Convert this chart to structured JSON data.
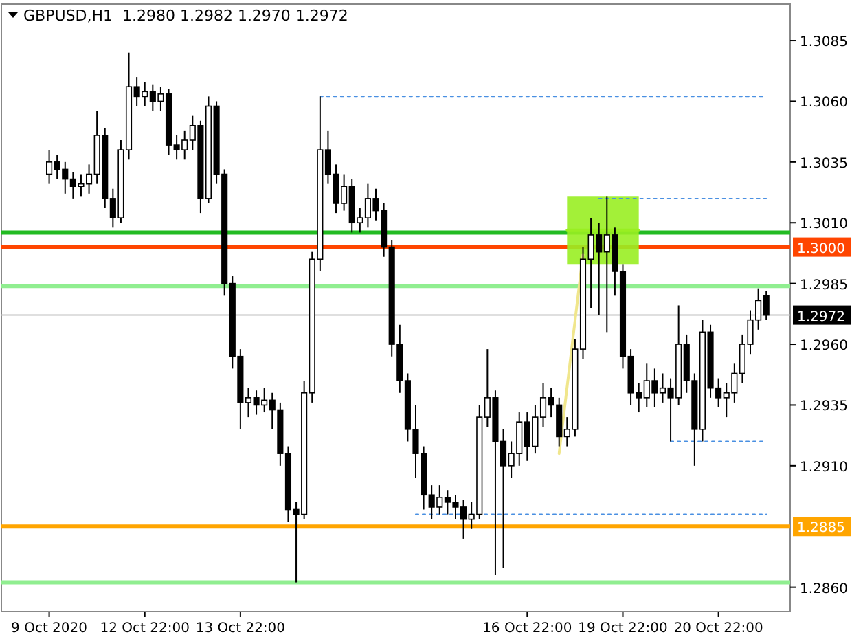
{
  "chart_data": {
    "type": "candlestick",
    "title": "GBPUSD,H1  1.2980 1.2982 1.2970 1.2972",
    "categories": [
      "9 Oct 2020",
      null,
      null,
      null,
      null,
      null,
      null,
      null,
      null,
      null,
      null,
      null,
      "12 Oct 22:00",
      null,
      null,
      null,
      null,
      null,
      null,
      null,
      null,
      null,
      null,
      null,
      "13 Oct 22:00",
      null,
      null,
      null,
      null,
      null,
      null,
      null,
      null,
      null,
      null,
      null,
      null,
      null,
      null,
      null,
      null,
      null,
      null,
      null,
      null,
      null,
      null,
      null,
      null,
      null,
      null,
      null,
      null,
      null,
      null,
      null,
      null,
      null,
      null,
      null,
      "16 Oct 22:00",
      null,
      null,
      null,
      null,
      null,
      null,
      null,
      null,
      null,
      null,
      null,
      "19 Oct 22:00",
      null,
      null,
      null,
      null,
      null,
      null,
      null,
      null,
      null,
      null,
      null,
      "20 Oct 22:00",
      null,
      null,
      null,
      null,
      null,
      null
    ],
    "ohlc": [
      [
        1.303,
        1.304,
        1.3026,
        1.3035
      ],
      [
        1.3035,
        1.3038,
        1.3028,
        1.3032
      ],
      [
        1.3032,
        1.3035,
        1.3022,
        1.3028
      ],
      [
        1.3028,
        1.3031,
        1.302,
        1.3025
      ],
      [
        1.3025,
        1.303,
        1.3021,
        1.3026
      ],
      [
        1.3026,
        1.3034,
        1.3022,
        1.303
      ],
      [
        1.303,
        1.3056,
        1.3026,
        1.3046
      ],
      [
        1.3046,
        1.3049,
        1.3016,
        1.302
      ],
      [
        1.302,
        1.3024,
        1.3008,
        1.3012
      ],
      [
        1.3012,
        1.3044,
        1.301,
        1.304
      ],
      [
        1.304,
        1.308,
        1.3036,
        1.3066
      ],
      [
        1.3066,
        1.307,
        1.3058,
        1.3062
      ],
      [
        1.3062,
        1.3068,
        1.3058,
        1.3064
      ],
      [
        1.3064,
        1.3067,
        1.3056,
        1.306
      ],
      [
        1.306,
        1.3066,
        1.3056,
        1.3063
      ],
      [
        1.3063,
        1.3065,
        1.3038,
        1.3042
      ],
      [
        1.3042,
        1.3046,
        1.3036,
        1.304
      ],
      [
        1.304,
        1.3048,
        1.3036,
        1.3044
      ],
      [
        1.3044,
        1.3054,
        1.304,
        1.305
      ],
      [
        1.305,
        1.3052,
        1.3014,
        1.302
      ],
      [
        1.302,
        1.3062,
        1.3018,
        1.3058
      ],
      [
        1.3058,
        1.306,
        1.3026,
        1.303
      ],
      [
        1.303,
        1.3032,
        1.298,
        1.2985
      ],
      [
        1.2985,
        1.2988,
        1.295,
        1.2955
      ],
      [
        1.2955,
        1.2958,
        1.2925,
        1.2936
      ],
      [
        1.2936,
        1.2942,
        1.293,
        1.2938
      ],
      [
        1.2938,
        1.2941,
        1.2931,
        1.2935
      ],
      [
        1.2935,
        1.2942,
        1.2932,
        1.2937
      ],
      [
        1.2937,
        1.294,
        1.2925,
        1.2933
      ],
      [
        1.2933,
        1.2936,
        1.291,
        1.2915
      ],
      [
        1.2915,
        1.2918,
        1.2887,
        1.2892
      ],
      [
        1.2892,
        1.2895,
        1.2862,
        1.289
      ],
      [
        1.289,
        1.2945,
        1.2888,
        1.294
      ],
      [
        1.294,
        1.2998,
        1.2936,
        1.2995
      ],
      [
        1.2995,
        1.3062,
        1.299,
        1.304
      ],
      [
        1.304,
        1.3048,
        1.3026,
        1.303
      ],
      [
        1.303,
        1.3034,
        1.3014,
        1.3018
      ],
      [
        1.3018,
        1.303,
        1.3015,
        1.3025
      ],
      [
        1.3025,
        1.3028,
        1.3006,
        1.301
      ],
      [
        1.301,
        1.3016,
        1.3006,
        1.3012
      ],
      [
        1.3012,
        1.3026,
        1.3008,
        1.302
      ],
      [
        1.302,
        1.3024,
        1.3011,
        1.3015
      ],
      [
        1.3015,
        1.3018,
        1.2996,
        1.3
      ],
      [
        1.3,
        1.3003,
        1.2955,
        1.296
      ],
      [
        1.296,
        1.2968,
        1.294,
        1.2945
      ],
      [
        1.2945,
        1.2948,
        1.292,
        1.2925
      ],
      [
        1.2925,
        1.2935,
        1.2905,
        1.2915
      ],
      [
        1.2915,
        1.2918,
        1.2892,
        1.2898
      ],
      [
        1.2898,
        1.2902,
        1.2888,
        1.2893
      ],
      [
        1.2893,
        1.2902,
        1.289,
        1.2897
      ],
      [
        1.2897,
        1.29,
        1.289,
        1.2895
      ],
      [
        1.2895,
        1.2898,
        1.2888,
        1.2893
      ],
      [
        1.2893,
        1.2896,
        1.288,
        1.2888
      ],
      [
        1.2888,
        1.2895,
        1.2884,
        1.289
      ],
      [
        1.289,
        1.2935,
        1.2888,
        1.293
      ],
      [
        1.293,
        1.2958,
        1.2926,
        1.2938
      ],
      [
        1.2938,
        1.2941,
        1.2865,
        1.292
      ],
      [
        1.292,
        1.2925,
        1.2868,
        1.291
      ],
      [
        1.291,
        1.292,
        1.2905,
        1.2915
      ],
      [
        1.2915,
        1.2932,
        1.291,
        1.2928
      ],
      [
        1.2928,
        1.2932,
        1.2912,
        1.2918
      ],
      [
        1.2918,
        1.2935,
        1.2915,
        1.293
      ],
      [
        1.293,
        1.2944,
        1.2926,
        1.2938
      ],
      [
        1.2938,
        1.2942,
        1.293,
        1.2935
      ],
      [
        1.2935,
        1.2938,
        1.2918,
        1.2922
      ],
      [
        1.2922,
        1.293,
        1.2918,
        1.2925
      ],
      [
        1.2925,
        1.2962,
        1.2922,
        1.2958
      ],
      [
        1.2958,
        1.3,
        1.2954,
        1.2995
      ],
      [
        1.2995,
        1.3012,
        1.2975,
        1.3005
      ],
      [
        1.3005,
        1.301,
        1.2972,
        1.2998
      ],
      [
        1.2998,
        1.3021,
        1.2965,
        1.3005
      ],
      [
        1.3005,
        1.3008,
        1.298,
        1.299
      ],
      [
        1.299,
        1.2993,
        1.295,
        1.2955
      ],
      [
        1.2955,
        1.2958,
        1.2935,
        1.294
      ],
      [
        1.294,
        1.2944,
        1.2932,
        1.2938
      ],
      [
        1.2938,
        1.2952,
        1.2934,
        1.2945
      ],
      [
        1.2945,
        1.295,
        1.2934,
        1.294
      ],
      [
        1.294,
        1.2948,
        1.2936,
        1.2942
      ],
      [
        1.2942,
        1.2946,
        1.292,
        1.2938
      ],
      [
        1.2938,
        1.2976,
        1.2935,
        1.296
      ],
      [
        1.296,
        1.2964,
        1.294,
        1.2945
      ],
      [
        1.2945,
        1.2948,
        1.291,
        1.2925
      ],
      [
        1.2925,
        1.297,
        1.292,
        1.2965
      ],
      [
        1.2965,
        1.2968,
        1.2938,
        1.2942
      ],
      [
        1.2942,
        1.2946,
        1.2934,
        1.2938
      ],
      [
        1.2938,
        1.2944,
        1.293,
        1.294
      ],
      [
        1.294,
        1.2952,
        1.2936,
        1.2948
      ],
      [
        1.2948,
        1.2964,
        1.2944,
        1.296
      ],
      [
        1.296,
        1.2974,
        1.2956,
        1.297
      ],
      [
        1.297,
        1.2983,
        1.2966,
        1.2978
      ],
      [
        1.298,
        1.2982,
        1.297,
        1.2972
      ]
    ],
    "ylim": [
      1.285,
      1.31
    ],
    "yticks": [
      {
        "value": 1.286,
        "label": "1.2860"
      },
      {
        "value": 1.291,
        "label": "1.2910"
      },
      {
        "value": 1.2935,
        "label": "1.2935"
      },
      {
        "value": 1.296,
        "label": "1.2960"
      },
      {
        "value": 1.2985,
        "label": "1.2985"
      },
      {
        "value": 1.301,
        "label": "1.3010"
      },
      {
        "value": 1.3035,
        "label": "1.3035"
      },
      {
        "value": 1.306,
        "label": "1.3060"
      },
      {
        "value": 1.3085,
        "label": "1.3085"
      }
    ],
    "ref_lines": [
      {
        "axis": "y",
        "value": 1.3006,
        "color": "#22bb22"
      },
      {
        "axis": "y",
        "value": 1.3,
        "color": "#ff4500",
        "label": "1.3000"
      },
      {
        "axis": "y",
        "value": 1.2984,
        "color": "#90ee90"
      },
      {
        "axis": "y",
        "value": 1.2972,
        "color": "#c0c0c0",
        "label": "1.2972"
      },
      {
        "axis": "y",
        "value": 1.2885,
        "color": "#ffa500",
        "label": "1.2885"
      },
      {
        "axis": "y",
        "value": 1.2862,
        "color": "#90ee90"
      }
    ],
    "series": [
      {
        "type": "line",
        "color": "#99ee22",
        "line_style": "solid",
        "values": [
          null,
          null,
          null,
          null,
          null,
          null,
          null,
          null,
          null,
          null,
          null,
          null,
          null,
          null,
          null,
          null,
          null,
          null,
          null,
          null,
          null,
          null,
          null,
          null,
          null,
          null,
          null,
          null,
          null,
          null,
          null,
          null,
          null,
          null,
          null,
          null,
          null,
          null,
          null,
          null,
          null,
          null,
          null,
          null,
          null,
          null,
          null,
          null,
          null,
          null,
          null,
          null,
          null,
          null,
          null,
          null,
          null,
          null,
          null,
          null,
          null,
          null,
          null,
          null,
          null,
          1.3007,
          null,
          null,
          null,
          null,
          null,
          null,
          null,
          null,
          1.3007,
          null,
          null,
          null,
          null,
          null,
          null,
          null,
          null,
          null,
          null,
          null,
          null,
          null,
          null,
          null,
          null
        ],
        "upper": [
          null,
          null,
          null,
          null,
          null,
          null,
          null,
          null,
          null,
          null,
          null,
          null,
          null,
          null,
          null,
          null,
          null,
          null,
          null,
          null,
          null,
          null,
          null,
          null,
          null,
          null,
          null,
          null,
          null,
          null,
          null,
          null,
          null,
          null,
          null,
          null,
          null,
          null,
          null,
          null,
          null,
          null,
          null,
          null,
          null,
          null,
          null,
          null,
          null,
          null,
          null,
          null,
          null,
          null,
          null,
          null,
          null,
          null,
          null,
          null,
          null,
          null,
          null,
          null,
          null,
          1.3021,
          null,
          null,
          null,
          null,
          null,
          null,
          null,
          null,
          1.3021,
          null,
          null,
          null,
          null,
          null,
          null,
          null,
          null,
          null,
          null,
          null,
          null,
          null,
          null,
          null,
          null
        ],
        "lower": [
          null,
          null,
          null,
          null,
          null,
          null,
          null,
          null,
          null,
          null,
          null,
          null,
          null,
          null,
          null,
          null,
          null,
          null,
          null,
          null,
          null,
          null,
          null,
          null,
          null,
          null,
          null,
          null,
          null,
          null,
          null,
          null,
          null,
          null,
          null,
          null,
          null,
          null,
          null,
          null,
          null,
          null,
          null,
          null,
          null,
          null,
          null,
          null,
          null,
          null,
          null,
          null,
          null,
          null,
          null,
          null,
          null,
          null,
          null,
          null,
          null,
          null,
          null,
          null,
          null,
          1.2993,
          null,
          null,
          null,
          null,
          null,
          null,
          null,
          null,
          1.2993,
          null,
          null,
          null,
          null,
          null,
          null,
          null,
          null,
          null,
          null,
          null,
          null,
          null,
          null,
          null,
          null
        ]
      },
      {
        "type": "line",
        "color": "#f0e68c",
        "line_style": "solid",
        "values": [
          null,
          null,
          null,
          null,
          null,
          null,
          null,
          null,
          null,
          null,
          null,
          null,
          null,
          null,
          null,
          null,
          null,
          null,
          null,
          null,
          null,
          null,
          null,
          null,
          null,
          null,
          null,
          null,
          null,
          null,
          null,
          null,
          null,
          null,
          null,
          null,
          null,
          null,
          null,
          null,
          null,
          null,
          null,
          null,
          null,
          null,
          null,
          null,
          null,
          null,
          null,
          null,
          null,
          null,
          null,
          null,
          null,
          null,
          null,
          null,
          null,
          null,
          null,
          null,
          1.2915,
          null,
          null,
          1.2997,
          null,
          null,
          null,
          null,
          null,
          null,
          null,
          null,
          null,
          null,
          null,
          null,
          null,
          null,
          null,
          null,
          null,
          null,
          null,
          null,
          null,
          null,
          null
        ]
      },
      {
        "type": "line",
        "color": "#4a90e2",
        "line_style": "dotted",
        "values": [
          null,
          null,
          null,
          null,
          null,
          null,
          null,
          null,
          null,
          null,
          null,
          null,
          null,
          null,
          null,
          null,
          null,
          null,
          null,
          null,
          null,
          null,
          null,
          null,
          null,
          null,
          null,
          null,
          null,
          null,
          null,
          null,
          null,
          null,
          1.3062,
          null,
          null,
          null,
          null,
          null,
          null,
          null,
          null,
          null,
          null,
          null,
          null,
          null,
          null,
          null,
          null,
          null,
          null,
          null,
          null,
          null,
          null,
          null,
          null,
          null,
          null,
          null,
          null,
          null,
          null,
          null,
          null,
          null,
          null,
          null,
          null,
          null,
          null,
          null,
          null,
          null,
          null,
          null,
          null,
          null,
          null,
          null,
          null,
          null,
          null,
          null,
          null,
          null,
          null,
          null,
          1.3062
        ]
      },
      {
        "type": "line",
        "color": "#4a90e2",
        "line_style": "dotted",
        "values": [
          null,
          null,
          null,
          null,
          null,
          null,
          null,
          null,
          null,
          null,
          null,
          null,
          null,
          null,
          null,
          null,
          null,
          null,
          null,
          null,
          null,
          null,
          null,
          null,
          null,
          null,
          null,
          null,
          null,
          null,
          null,
          null,
          null,
          null,
          null,
          null,
          null,
          null,
          null,
          null,
          null,
          null,
          null,
          null,
          null,
          null,
          null,
          null,
          null,
          null,
          null,
          null,
          null,
          null,
          null,
          null,
          null,
          null,
          null,
          null,
          null,
          null,
          null,
          null,
          null,
          null,
          null,
          null,
          null,
          1.302,
          null,
          null,
          null,
          null,
          null,
          null,
          null,
          null,
          null,
          null,
          null,
          null,
          null,
          null,
          null,
          null,
          null,
          null,
          null,
          null,
          1.302
        ]
      },
      {
        "type": "line",
        "color": "#4a90e2",
        "line_style": "dotted",
        "values": [
          null,
          null,
          null,
          null,
          null,
          null,
          null,
          null,
          null,
          null,
          null,
          null,
          null,
          null,
          null,
          null,
          null,
          null,
          null,
          null,
          null,
          null,
          null,
          null,
          null,
          null,
          null,
          null,
          null,
          null,
          null,
          null,
          null,
          null,
          null,
          null,
          null,
          null,
          null,
          null,
          null,
          null,
          null,
          null,
          null,
          null,
          null,
          null,
          null,
          null,
          null,
          null,
          null,
          null,
          null,
          null,
          null,
          null,
          null,
          null,
          null,
          null,
          null,
          null,
          null,
          null,
          null,
          null,
          null,
          null,
          null,
          null,
          null,
          null,
          null,
          null,
          null,
          null,
          1.292,
          null,
          null,
          null,
          null,
          null,
          null,
          null,
          null,
          null,
          null,
          null,
          1.292
        ]
      },
      {
        "type": "line",
        "color": "#4a90e2",
        "line_style": "dotted",
        "values": [
          null,
          null,
          null,
          null,
          null,
          null,
          null,
          null,
          null,
          null,
          null,
          null,
          null,
          null,
          null,
          null,
          null,
          null,
          null,
          null,
          null,
          null,
          null,
          null,
          null,
          null,
          null,
          null,
          null,
          null,
          null,
          null,
          null,
          null,
          null,
          null,
          null,
          null,
          null,
          null,
          null,
          null,
          null,
          null,
          null,
          null,
          1.289,
          null,
          null,
          null,
          null,
          null,
          null,
          null,
          null,
          null,
          null,
          null,
          null,
          null,
          null,
          null,
          null,
          null,
          null,
          null,
          null,
          null,
          null,
          null,
          null,
          null,
          null,
          null,
          null,
          null,
          null,
          null,
          null,
          null,
          null,
          null,
          null,
          null,
          null,
          null,
          null,
          null,
          null,
          null,
          1.289
        ]
      }
    ],
    "grid": false
  }
}
